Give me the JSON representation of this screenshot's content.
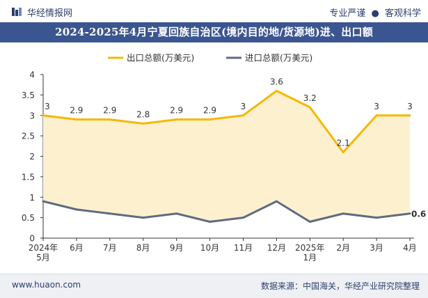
{
  "header": {
    "brand": "华经情报网",
    "tagline_left": "专业严谨",
    "tagline_sep": "●",
    "tagline_right": "客观科学"
  },
  "footer": {
    "website": "www.huaon.com",
    "source": "数据来源：中国海关，华经产业研究院整理"
  },
  "colors": {
    "export_line": "#f5b800",
    "import_line": "#5f6b80",
    "fill": "#fdf0cf",
    "title_bg": "#3b5590"
  },
  "chart_data": {
    "type": "line",
    "title": "2024-2025年4月宁夏回族自治区(境内目的地/货源地)进、出口额",
    "categories": [
      [
        "2024年",
        "5月"
      ],
      [
        "6月"
      ],
      [
        "7月"
      ],
      [
        "8月"
      ],
      [
        "9月"
      ],
      [
        "10月"
      ],
      [
        "11月"
      ],
      [
        "12月"
      ],
      [
        "2025年",
        "1月"
      ],
      [
        "2月"
      ],
      [
        "3月"
      ],
      [
        "4月"
      ]
    ],
    "series": [
      {
        "name": "出口总额(万美元)",
        "values": [
          3,
          2.9,
          2.9,
          2.8,
          2.9,
          2.9,
          3,
          3.6,
          3.2,
          2.1,
          3,
          3
        ],
        "labels": [
          "3",
          "2.9",
          "2.9",
          "2.8",
          "2.9",
          "2.9",
          "3",
          "3.6",
          "3.2",
          "2.1",
          "3",
          "3"
        ]
      },
      {
        "name": "进口总额(万美元)",
        "values": [
          0.9,
          0.7,
          0.6,
          0.5,
          0.6,
          0.4,
          0.5,
          0.9,
          0.4,
          0.6,
          0.5,
          0.6
        ],
        "end_label": "0.6"
      }
    ],
    "ylim": [
      0,
      4
    ],
    "yticks": [
      "0",
      "0.5",
      "1",
      "1.5",
      "2",
      "2.5",
      "3",
      "3.5",
      "4"
    ],
    "ytick_values": [
      0,
      0.5,
      1,
      1.5,
      2,
      2.5,
      3,
      3.5,
      4
    ],
    "legend_position": "top-center"
  }
}
